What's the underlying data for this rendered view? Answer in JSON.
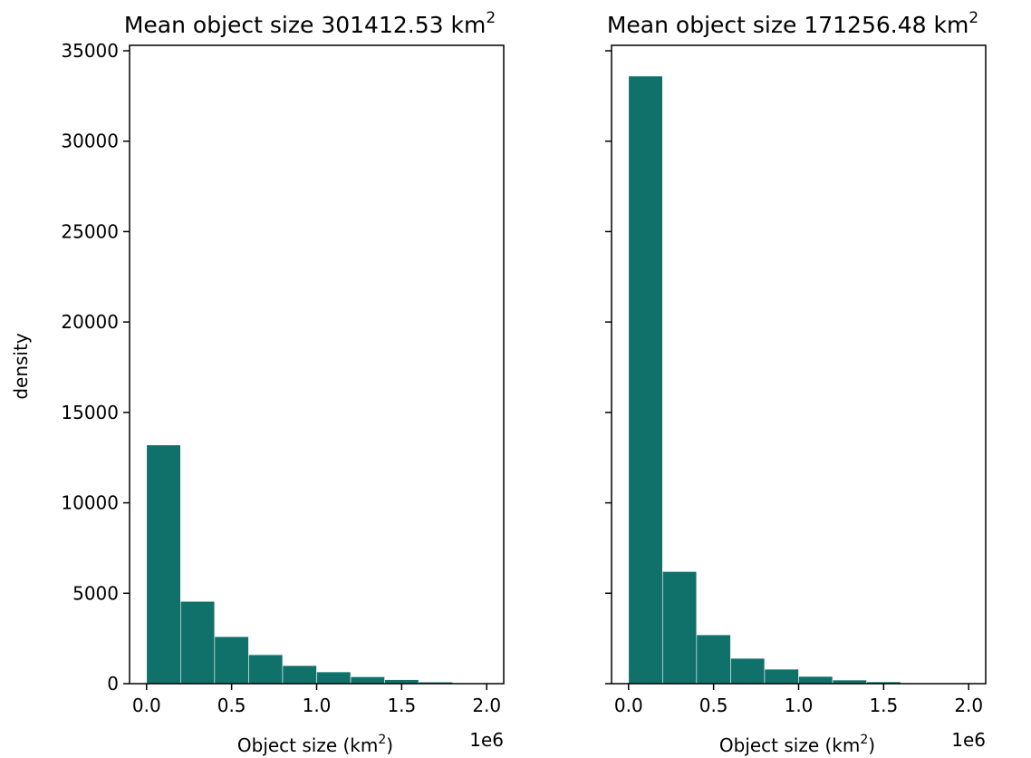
{
  "bar_color": "#10716a",
  "chart_data": [
    {
      "type": "bar",
      "title": "Mean object size 301412.53 km",
      "title_superscript": "2",
      "ylabel": "density",
      "xlabel": "Object size (km",
      "xlabel_superscript": "2",
      "xlabel_suffix": ")",
      "x_offset_label": "1e6",
      "xlim": [
        -0.1,
        2.1
      ],
      "ylim": [
        0,
        35300
      ],
      "xticks": [
        0.0,
        0.5,
        1.0,
        1.5,
        2.0
      ],
      "xtick_labels": [
        "0.0",
        "0.5",
        "1.0",
        "1.5",
        "2.0"
      ],
      "yticks": [
        0,
        5000,
        10000,
        15000,
        20000,
        25000,
        30000,
        35000
      ],
      "ytick_labels": [
        "0",
        "5000",
        "10000",
        "15000",
        "20000",
        "25000",
        "30000",
        "35000"
      ],
      "show_ytick_labels": true,
      "bin_edges": [
        0.0,
        0.2,
        0.4,
        0.6,
        0.8,
        1.0,
        1.2,
        1.4,
        1.6,
        1.8,
        2.0
      ],
      "values": [
        13200,
        4550,
        2600,
        1600,
        1000,
        650,
        380,
        220,
        90,
        25
      ],
      "grid": false
    },
    {
      "type": "bar",
      "title": "Mean object size 171256.48 km",
      "title_superscript": "2",
      "ylabel": "",
      "xlabel": "Object size (km",
      "xlabel_superscript": "2",
      "xlabel_suffix": ")",
      "x_offset_label": "1e6",
      "xlim": [
        -0.1,
        2.1
      ],
      "ylim": [
        0,
        35300
      ],
      "xticks": [
        0.0,
        0.5,
        1.0,
        1.5,
        2.0
      ],
      "xtick_labels": [
        "0.0",
        "0.5",
        "1.0",
        "1.5",
        "2.0"
      ],
      "yticks": [
        0,
        5000,
        10000,
        15000,
        20000,
        25000,
        30000,
        35000
      ],
      "ytick_labels": [
        "0",
        "5000",
        "10000",
        "15000",
        "20000",
        "25000",
        "30000",
        "35000"
      ],
      "show_ytick_labels": false,
      "bin_edges": [
        0.0,
        0.2,
        0.4,
        0.6,
        0.8,
        1.0,
        1.2,
        1.4,
        1.6,
        1.8,
        2.0
      ],
      "values": [
        33600,
        6200,
        2700,
        1400,
        800,
        400,
        200,
        100,
        40,
        10
      ],
      "grid": false
    }
  ]
}
